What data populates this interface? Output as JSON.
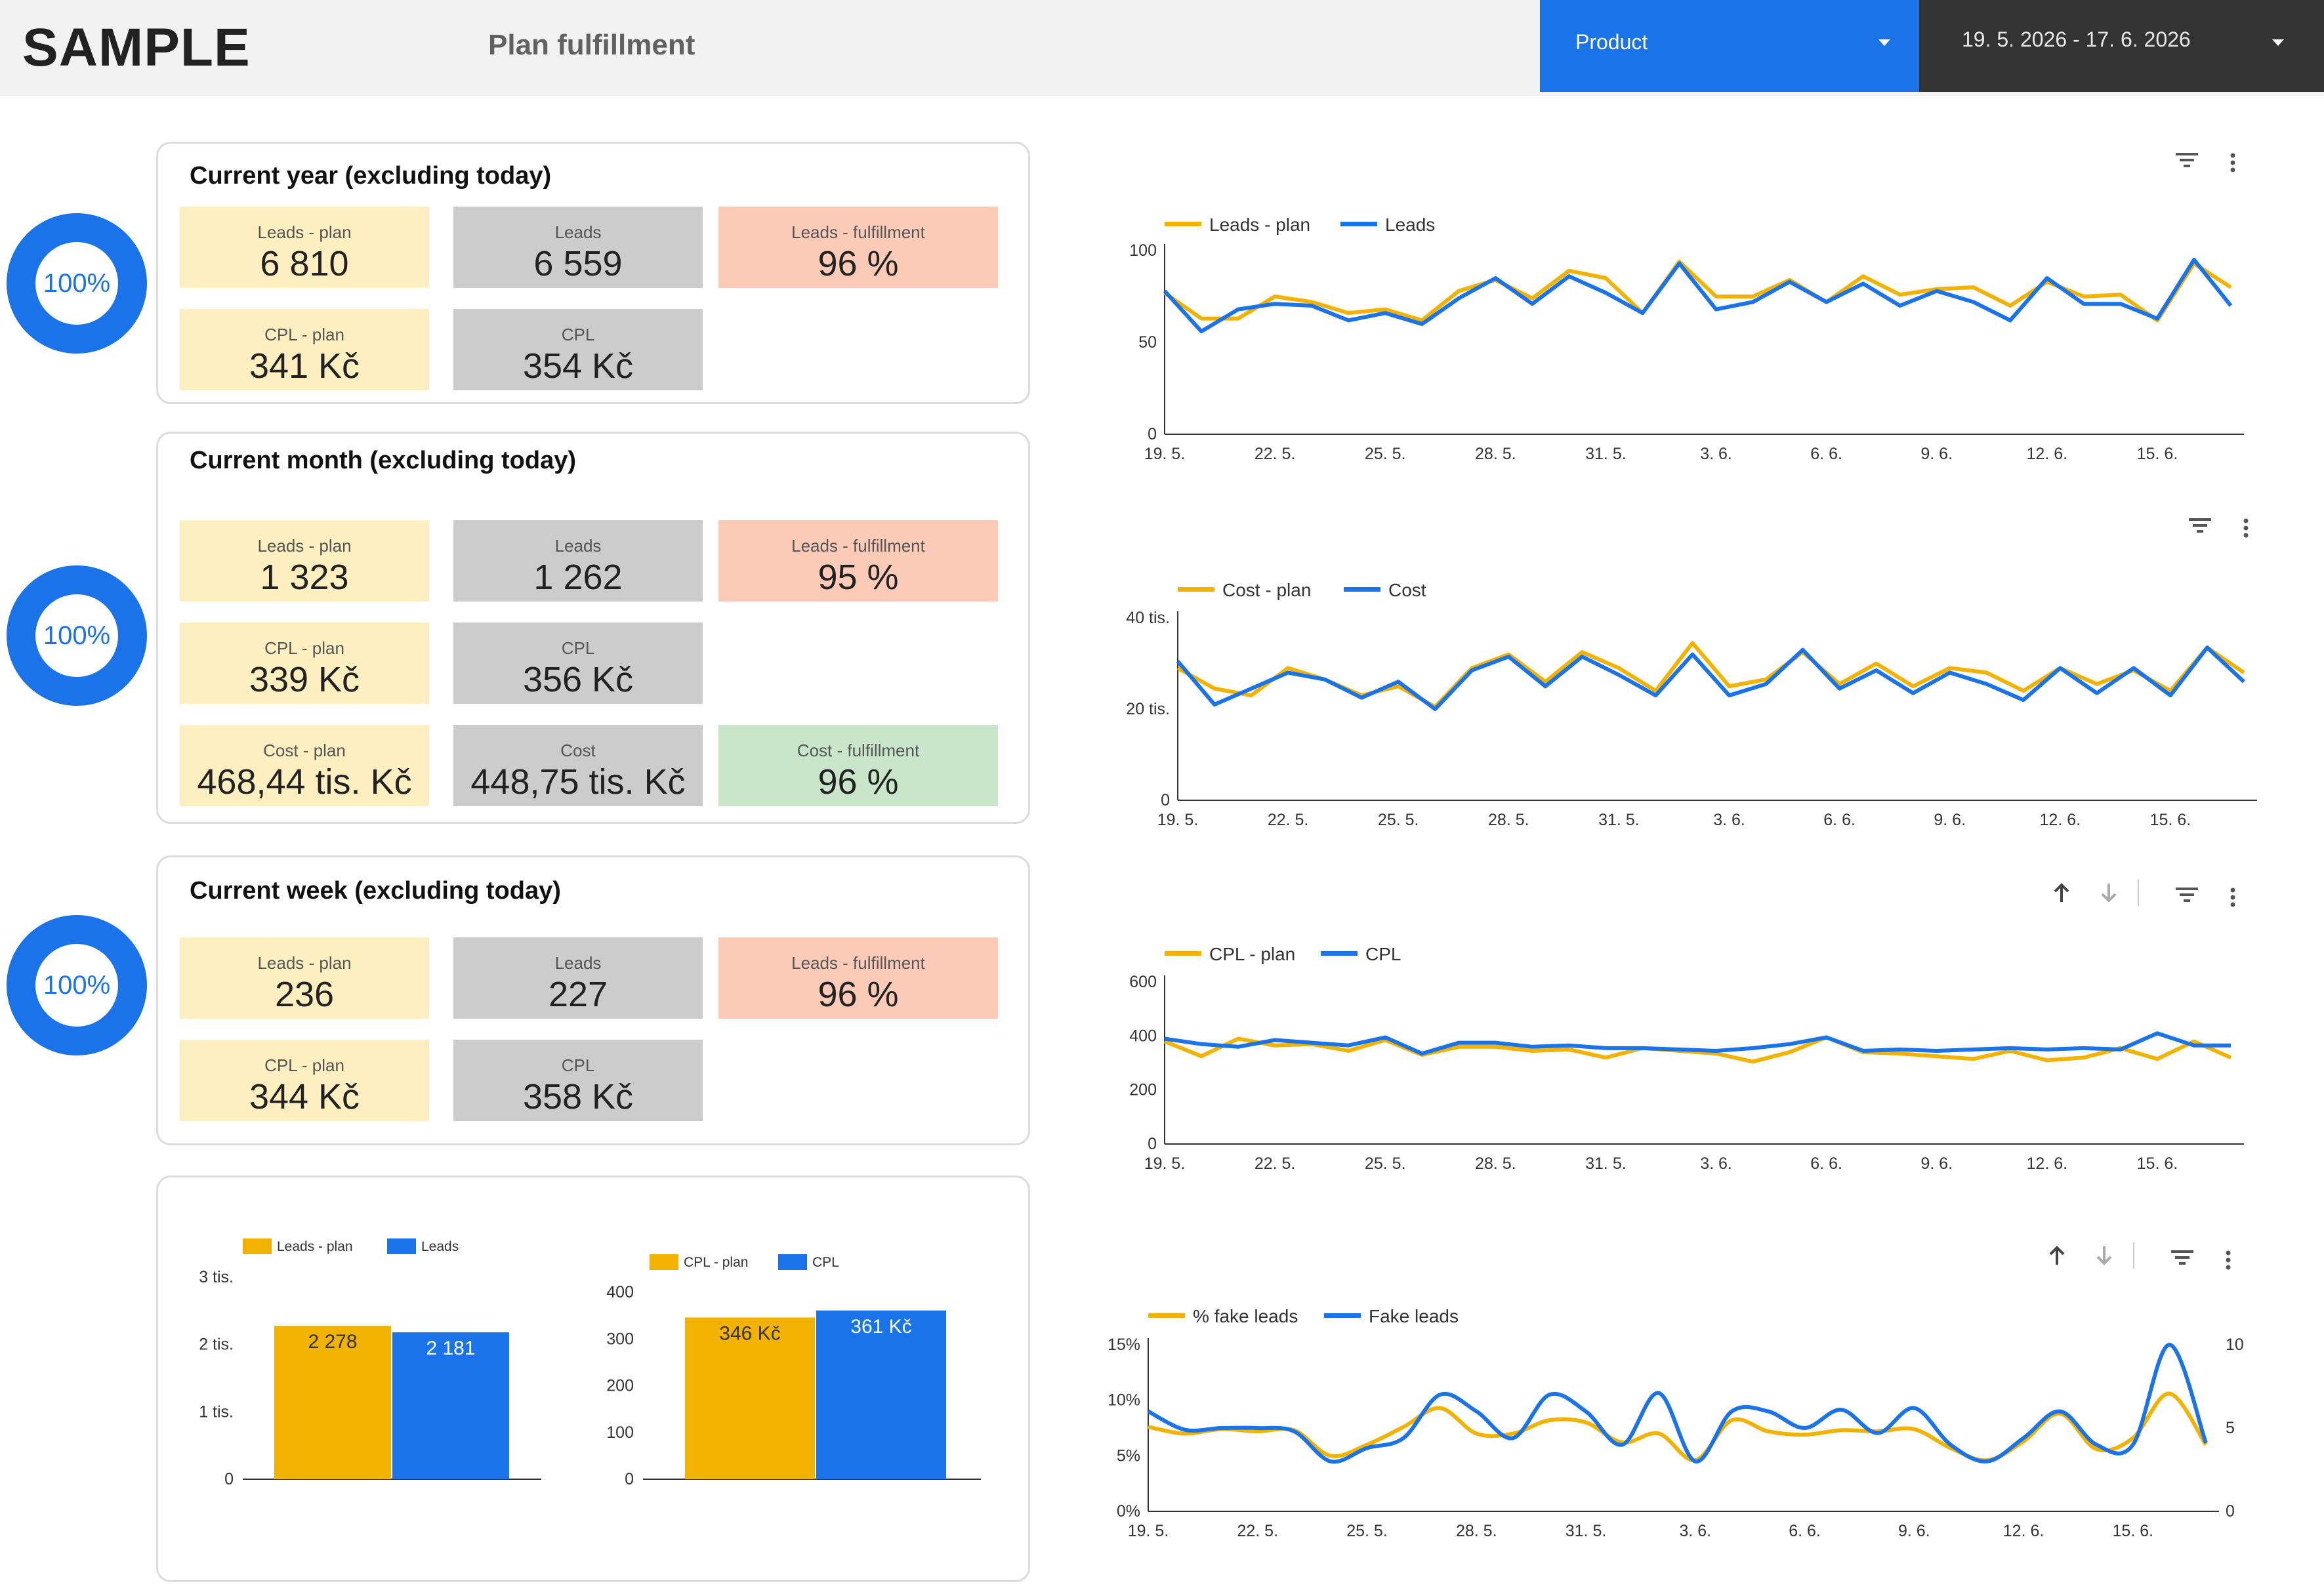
{
  "header": {
    "logo": "SAMPLE",
    "title": "Plan fulfillment",
    "product_control": {
      "label": "Product"
    },
    "date_control": {
      "label": "19. 5. 2026 - 17. 6. 2026"
    }
  },
  "donuts": [
    {
      "value": "100%"
    },
    {
      "value": "100%"
    },
    {
      "value": "100%"
    }
  ],
  "colors": {
    "plan": "#f2b300",
    "actual": "#1a73e8",
    "plan_tile": "#fdefc0",
    "actual_tile": "#cccccc",
    "bad_tile": "#fbcbb8",
    "good_tile": "#c9e6ca"
  },
  "cards": {
    "year": {
      "title": "Current year (excluding today)",
      "leads_plan": {
        "label": "Leads - plan",
        "value": "6 810"
      },
      "leads": {
        "label": "Leads",
        "value": "6 559"
      },
      "leads_fulfillment": {
        "label": "Leads - fulfillment",
        "value": "96 %"
      },
      "cpl_plan": {
        "label": "CPL - plan",
        "value": "341 Kč"
      },
      "cpl": {
        "label": "CPL",
        "value": "354 Kč"
      }
    },
    "month": {
      "title": "Current month (excluding today)",
      "leads_plan": {
        "label": "Leads - plan",
        "value": "1 323"
      },
      "leads": {
        "label": "Leads",
        "value": "1 262"
      },
      "leads_fulfillment": {
        "label": "Leads - fulfillment",
        "value": "95 %"
      },
      "cpl_plan": {
        "label": "CPL - plan",
        "value": "339 Kč"
      },
      "cpl": {
        "label": "CPL",
        "value": "356 Kč"
      },
      "cost_plan": {
        "label": "Cost - plan",
        "value": "468,44 tis. Kč"
      },
      "cost": {
        "label": "Cost",
        "value": "448,75 tis. Kč"
      },
      "cost_fulfillment": {
        "label": "Cost - fulfillment",
        "value": "96 %"
      }
    },
    "week": {
      "title": "Current week (excluding today)",
      "leads_plan": {
        "label": "Leads - plan",
        "value": "236"
      },
      "leads": {
        "label": "Leads",
        "value": "227"
      },
      "leads_fulfillment": {
        "label": "Leads - fulfillment",
        "value": "96 %"
      },
      "cpl_plan": {
        "label": "CPL - plan",
        "value": "344 Kč"
      },
      "cpl": {
        "label": "CPL",
        "value": "358 Kč"
      }
    }
  },
  "chart_data": [
    {
      "id": "leads-line",
      "type": "line",
      "x": [
        "19. 5.",
        "20. 5.",
        "21. 5.",
        "22. 5.",
        "23. 5.",
        "24. 5.",
        "25. 5.",
        "26. 5.",
        "27. 5.",
        "28. 5.",
        "29. 5.",
        "30. 5.",
        "31. 5.",
        "1. 6.",
        "2. 6.",
        "3. 6.",
        "4. 6.",
        "5. 6.",
        "6. 6.",
        "7. 6.",
        "8. 6.",
        "9. 6.",
        "10. 6.",
        "11. 6.",
        "12. 6.",
        "13. 6.",
        "14. 6.",
        "15. 6.",
        "16. 6.",
        "17. 6."
      ],
      "xticks": [
        "19. 5.",
        "22. 5.",
        "25. 5.",
        "28. 5.",
        "31. 5.",
        "3. 6.",
        "6. 6.",
        "9. 6.",
        "12. 6.",
        "15. 6."
      ],
      "yticks": [
        "0",
        "50",
        "100"
      ],
      "ylim": [
        0,
        100
      ],
      "series": [
        {
          "name": "Leads - plan",
          "color": "#f2b300",
          "values": [
            77,
            63,
            63,
            75,
            72,
            66,
            68,
            62,
            78,
            84,
            74,
            89,
            85,
            66,
            94,
            75,
            75,
            84,
            72,
            86,
            76,
            79,
            80,
            70,
            83,
            75,
            76,
            62,
            93,
            80
          ]
        },
        {
          "name": "Leads",
          "color": "#1a73e8",
          "values": [
            78,
            56,
            68,
            71,
            70,
            62,
            66,
            60,
            74,
            85,
            71,
            86,
            77,
            66,
            93,
            68,
            72,
            83,
            72,
            82,
            70,
            78,
            72,
            62,
            85,
            71,
            71,
            63,
            95,
            70
          ]
        }
      ]
    },
    {
      "id": "cost-line",
      "type": "line",
      "x": [
        "19. 5.",
        "20. 5.",
        "21. 5.",
        "22. 5.",
        "23. 5.",
        "24. 5.",
        "25. 5.",
        "26. 5.",
        "27. 5.",
        "28. 5.",
        "29. 5.",
        "30. 5.",
        "31. 5.",
        "1. 6.",
        "2. 6.",
        "3. 6.",
        "4. 6.",
        "5. 6.",
        "6. 6.",
        "7. 6.",
        "8. 6.",
        "9. 6.",
        "10. 6.",
        "11. 6.",
        "12. 6.",
        "13. 6.",
        "14. 6.",
        "15. 6.",
        "16. 6.",
        "17. 6."
      ],
      "xticks": [
        "19. 5.",
        "22. 5.",
        "25. 5.",
        "28. 5.",
        "31. 5.",
        "3. 6.",
        "6. 6.",
        "9. 6.",
        "12. 6.",
        "15. 6."
      ],
      "yticks": [
        "0",
        "20 tis.",
        "40 tis."
      ],
      "ylim": [
        0,
        40000
      ],
      "series": [
        {
          "name": "Cost - plan",
          "color": "#f2b300",
          "values": [
            29000,
            24500,
            23000,
            29000,
            26500,
            23000,
            25000,
            20500,
            29000,
            32000,
            26000,
            32500,
            29000,
            24000,
            34500,
            25000,
            26500,
            32500,
            25500,
            30000,
            25000,
            29000,
            28000,
            24000,
            29000,
            25500,
            28500,
            24000,
            33500,
            28000
          ]
        },
        {
          "name": "Cost",
          "color": "#1a73e8",
          "values": [
            30500,
            21000,
            24500,
            28000,
            26500,
            22500,
            26000,
            20000,
            28500,
            31500,
            25000,
            31500,
            27500,
            23000,
            32000,
            23000,
            25500,
            33000,
            24500,
            28500,
            23500,
            28000,
            25500,
            22000,
            29000,
            23500,
            29000,
            23000,
            33500,
            26000
          ]
        }
      ]
    },
    {
      "id": "cpl-line",
      "type": "line",
      "x": [
        "19. 5.",
        "20. 5.",
        "21. 5.",
        "22. 5.",
        "23. 5.",
        "24. 5.",
        "25. 5.",
        "26. 5.",
        "27. 5.",
        "28. 5.",
        "29. 5.",
        "30. 5.",
        "31. 5.",
        "1. 6.",
        "2. 6.",
        "3. 6.",
        "4. 6.",
        "5. 6.",
        "6. 6.",
        "7. 6.",
        "8. 6.",
        "9. 6.",
        "10. 6.",
        "11. 6.",
        "12. 6.",
        "13. 6.",
        "14. 6.",
        "15. 6.",
        "16. 6.",
        "17. 6."
      ],
      "xticks": [
        "19. 5.",
        "22. 5.",
        "25. 5.",
        "28. 5.",
        "31. 5.",
        "3. 6.",
        "6. 6.",
        "9. 6.",
        "12. 6.",
        "15. 6."
      ],
      "yticks": [
        "0",
        "200",
        "400",
        "600"
      ],
      "ylim": [
        0,
        600
      ],
      "series": [
        {
          "name": "CPL - plan",
          "color": "#f2b300",
          "values": [
            380,
            325,
            390,
            365,
            370,
            345,
            385,
            330,
            360,
            360,
            345,
            350,
            320,
            355,
            345,
            335,
            305,
            340,
            395,
            340,
            335,
            325,
            315,
            345,
            310,
            320,
            355,
            315,
            380,
            320
          ]
        },
        {
          "name": "CPL",
          "color": "#1a73e8",
          "values": [
            390,
            370,
            360,
            385,
            375,
            365,
            395,
            335,
            375,
            375,
            360,
            365,
            355,
            355,
            350,
            345,
            355,
            370,
            395,
            345,
            350,
            345,
            350,
            355,
            350,
            355,
            350,
            410,
            365,
            365
          ]
        }
      ]
    },
    {
      "id": "fake-leads-line",
      "type": "line",
      "x": [
        "19. 5.",
        "20. 5.",
        "21. 5.",
        "22. 5.",
        "23. 5.",
        "24. 5.",
        "25. 5.",
        "26. 5.",
        "27. 5.",
        "28. 5.",
        "29. 5.",
        "30. 5.",
        "31. 5.",
        "1. 6.",
        "2. 6.",
        "3. 6.",
        "4. 6.",
        "5. 6.",
        "6. 6.",
        "7. 6.",
        "8. 6.",
        "9. 6.",
        "10. 6.",
        "11. 6.",
        "12. 6.",
        "13. 6.",
        "14. 6.",
        "15. 6.",
        "16. 6.",
        "17. 6."
      ],
      "xticks": [
        "19. 5.",
        "22. 5.",
        "25. 5.",
        "28. 5.",
        "31. 5.",
        "3. 6.",
        "6. 6.",
        "9. 6.",
        "12. 6.",
        "15. 6."
      ],
      "yticks_left": [
        "0%",
        "5%",
        "10%",
        "15%"
      ],
      "yticks_right": [
        "0",
        "5",
        "10"
      ],
      "ylim_left": [
        0,
        15
      ],
      "ylim_right": [
        0,
        10
      ],
      "series": [
        {
          "name": "% fake leads",
          "color": "#f2b300",
          "axis": "left",
          "values": [
            7.6,
            7.0,
            7.4,
            7.2,
            7.3,
            5.0,
            6.0,
            7.6,
            9.3,
            7.0,
            7.0,
            8.2,
            8.0,
            6.2,
            7.0,
            4.6,
            8.2,
            7.2,
            6.9,
            7.3,
            7.2,
            7.4,
            5.7,
            4.6,
            6.3,
            8.8,
            5.6,
            6.6,
            10.6,
            6.0
          ]
        },
        {
          "name": "Fake leads",
          "color": "#1a73e8",
          "axis": "right",
          "values": [
            6.0,
            4.9,
            5.0,
            5.0,
            4.8,
            3.0,
            3.8,
            4.4,
            7.0,
            6.0,
            4.4,
            7.0,
            6.0,
            4.0,
            7.1,
            3.0,
            6.0,
            6.0,
            5.0,
            6.1,
            4.7,
            6.2,
            4.0,
            3.0,
            4.4,
            6.0,
            4.0,
            4.0,
            10.0,
            4.1
          ]
        }
      ]
    },
    {
      "id": "leads-bar",
      "type": "bar",
      "categories": [
        ""
      ],
      "yticks": [
        "0",
        "1 tis.",
        "2 tis.",
        "3 tis."
      ],
      "ylim": [
        0,
        3000
      ],
      "series": [
        {
          "name": "Leads - plan",
          "color": "#f2b300",
          "values": [
            2278
          ],
          "label": "2 278"
        },
        {
          "name": "Leads",
          "color": "#1a73e8",
          "values": [
            2181
          ],
          "label": "2 181"
        }
      ]
    },
    {
      "id": "cpl-bar",
      "type": "bar",
      "categories": [
        ""
      ],
      "yticks": [
        "0",
        "100",
        "200",
        "300",
        "400"
      ],
      "ylim": [
        0,
        400
      ],
      "series": [
        {
          "name": "CPL - plan",
          "color": "#f2b300",
          "values": [
            346
          ],
          "label": "346 Kč"
        },
        {
          "name": "CPL",
          "color": "#1a73e8",
          "values": [
            361
          ],
          "label": "361 Kč"
        }
      ]
    }
  ]
}
